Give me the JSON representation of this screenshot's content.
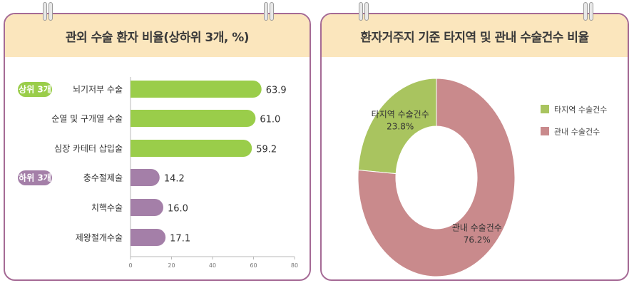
{
  "chart_data": [
    {
      "type": "bar",
      "orientation": "horizontal",
      "title": "관외 수술 환자 비율(상하위 3개, %)",
      "groups": [
        {
          "label": "상위 3개",
          "color": "#9acd4a"
        },
        {
          "label": "하위 3개",
          "color": "#a47fa8"
        }
      ],
      "categories": [
        "뇌기저부 수술",
        "순열 및 구개열 수술",
        "심장 카테터 삽입술",
        "충수절제술",
        "치핵수술",
        "제왕절개수술"
      ],
      "values": [
        63.9,
        61.0,
        59.2,
        14.2,
        16.0,
        17.1
      ],
      "value_labels": [
        "63.9",
        "61.0",
        "59.2",
        "14.2",
        "16.0",
        "17.1"
      ],
      "group_index": [
        0,
        0,
        0,
        1,
        1,
        1
      ],
      "xlim": [
        0,
        80
      ],
      "xticks": [
        "0",
        "20",
        "40",
        "60",
        "80"
      ],
      "grid": false
    },
    {
      "type": "pie",
      "donut": true,
      "title": "환자거주지 기준 타지역 및 관내 수술건수 비율",
      "legend_position": "right",
      "slices": [
        {
          "label": "타지역 수술건수",
          "value": 23.8,
          "value_label": "23.8%",
          "color": "#a9c45f"
        },
        {
          "label": "관내 수술건수",
          "value": 76.2,
          "value_label": "76.2%",
          "color": "#c98a8c"
        }
      ]
    }
  ]
}
